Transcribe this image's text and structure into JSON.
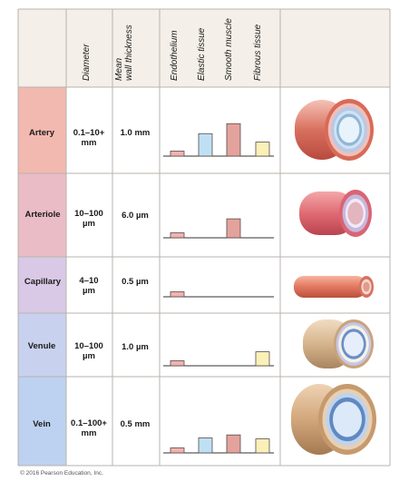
{
  "columns": {
    "diameter": "Diameter",
    "wall_thickness_line1": "Mean",
    "wall_thickness_line2": "wall thickness",
    "tissues": [
      "Endothelium",
      "Elastic tissue",
      "Smooth muscle",
      "Fibrous tissue"
    ]
  },
  "rows": [
    {
      "name": "Artery",
      "diameter": [
        "0.1–10+",
        "mm"
      ],
      "wall": "1.0 mm",
      "tissue_levels": [
        0.1,
        0.45,
        0.65,
        0.28
      ],
      "color": "#f2b9b0"
    },
    {
      "name": "Arteriole",
      "diameter": [
        "10–100",
        "µm"
      ],
      "wall": "6.0 µm",
      "tissue_levels": [
        0.1,
        0,
        0.38,
        0
      ],
      "color": "#e9bcc6"
    },
    {
      "name": "Capillary",
      "diameter": [
        "4–10",
        "µm"
      ],
      "wall": "0.5 µm",
      "tissue_levels": [
        0.1,
        0,
        0,
        0
      ],
      "color": "#d9c9e6"
    },
    {
      "name": "Venule",
      "diameter": [
        "10–100",
        "µm"
      ],
      "wall": "1.0 µm",
      "tissue_levels": [
        0.1,
        0,
        0,
        0.28
      ],
      "color": "#c8d2ee"
    },
    {
      "name": "Vein",
      "diameter": [
        "0.1–100+",
        "mm"
      ],
      "wall": "0.5 mm",
      "tissue_levels": [
        0.1,
        0.3,
        0.36,
        0.28
      ],
      "color": "#bcd2f0"
    }
  ],
  "tissue_colors": [
    "#f0b3b0",
    "#bfe0f4",
    "#e3a39c",
    "#faf0b8"
  ],
  "copyright": "© 2016 Pearson Education, Inc."
}
